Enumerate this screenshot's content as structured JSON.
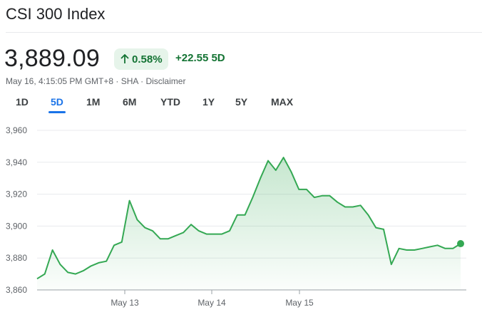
{
  "header": {
    "title": "CSI 300 Index",
    "price": "3,889.09",
    "pct_change": "0.58%",
    "abs_change": "+22.55 5D",
    "timestamp": "May 16, 4:15:05 PM GMT+8",
    "exchange": "SHA",
    "disclaimer": "Disclaimer",
    "separator": " · "
  },
  "tabs": [
    {
      "label": "1D",
      "active": false
    },
    {
      "label": "5D",
      "active": true
    },
    {
      "label": "1M",
      "active": false
    },
    {
      "label": "6M",
      "active": false
    },
    {
      "label": "YTD",
      "active": false
    },
    {
      "label": "1Y",
      "active": false
    },
    {
      "label": "5Y",
      "active": false
    },
    {
      "label": "MAX",
      "active": false
    }
  ],
  "colors": {
    "up": "#137333",
    "line": "#34a853",
    "accent": "#1a73e8"
  },
  "chart_data": {
    "type": "area",
    "y_ticks": [
      "3,960",
      "3,940",
      "3,920",
      "3,900",
      "3,880",
      "3,860"
    ],
    "ylim": [
      3860,
      3960
    ],
    "x_ticks": [
      "May 13",
      "May 14",
      "May 15"
    ],
    "series": [
      {
        "values": [
          3867,
          3870,
          3885,
          3876,
          3871,
          3870,
          3872,
          3875,
          3877,
          3878,
          3888,
          3890,
          3916,
          3904,
          3899,
          3897,
          3892,
          3892,
          3894,
          3896,
          3901,
          3897,
          3895,
          3895,
          3895,
          3897,
          3907,
          3907,
          3918,
          3930,
          3941,
          3935,
          3943,
          3934,
          3923,
          3923,
          3918,
          3919,
          3919,
          3915,
          3912,
          3912,
          3913,
          3907,
          3899,
          3898,
          3876,
          3886,
          3885,
          3885,
          3886,
          3887,
          3888,
          3886,
          3886,
          3889
        ]
      }
    ],
    "last_value": 3889.09
  }
}
